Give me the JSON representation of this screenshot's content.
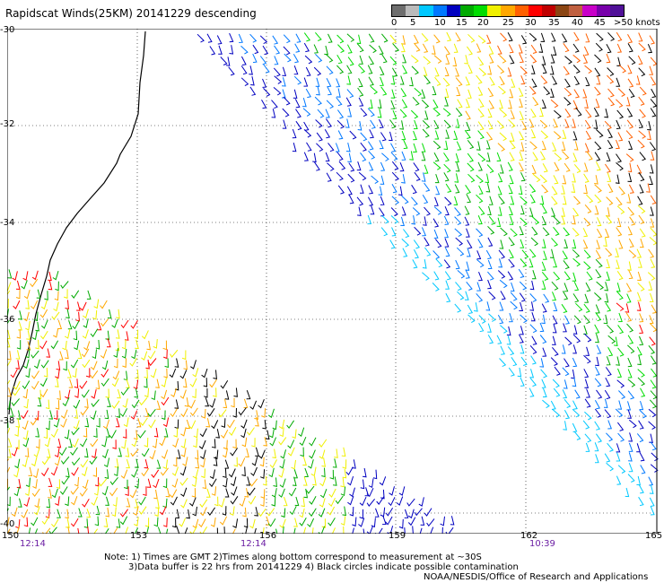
{
  "title": "Rapidscat Winds(25KM) 20141229 descending",
  "scale": {
    "colors": [
      "#6e6e6e",
      "#bbbbbb",
      "#00c8ff",
      "#0078ff",
      "#0000c0",
      "#00aa00",
      "#00dd00",
      "#f0f000",
      "#ffa800",
      "#ff6000",
      "#ff0000",
      "#c00000",
      "#8b4513",
      "#c06040",
      "#c800c8",
      "#7800aa",
      "#501098"
    ],
    "labels": [
      "0",
      "5",
      "10",
      "15",
      "20",
      "25",
      "30",
      "35",
      "40",
      "45",
      ">50 knots"
    ]
  },
  "map": {
    "lon_labels": [
      "150",
      "153",
      "156",
      "159",
      "162",
      "165"
    ],
    "lat_labels": [
      "-30",
      "-32",
      "-34",
      "-36",
      "-38",
      "-40"
    ],
    "times": [
      "12:14",
      "12:14",
      "10:39"
    ]
  },
  "notes": {
    "line1": "Note: 1) Times are GMT 2)Times along bottom correspond to measurement at ~30S",
    "line2": "3)Data buffer is 22 hrs from 20141229 4) Black circles indicate possible contamination",
    "line3": "NOAA/NESDIS/Office of Research and Applications"
  }
}
